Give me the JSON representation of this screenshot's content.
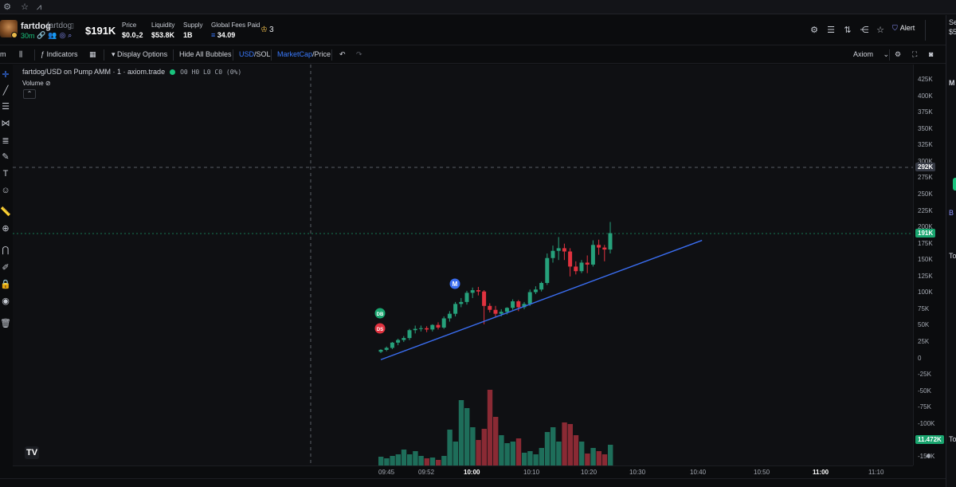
{
  "browser": {
    "icons": [
      "settings-icon",
      "star-icon",
      "chart-icon"
    ]
  },
  "token": {
    "name": "fartdog",
    "ticker": "fartdog",
    "age": "30m",
    "market_cap": "$191K",
    "stats": [
      {
        "label": "Price",
        "value": "$0.0₂2",
        "color": "#ffffff"
      },
      {
        "label": "Liquidity",
        "value": "$53.8K",
        "color": "#ffffff"
      },
      {
        "label": "Supply",
        "value": "1B",
        "color": "#ffffff"
      },
      {
        "label": "Global Fees Paid",
        "value": "34.09",
        "color": "#ffffff"
      }
    ],
    "holders_crown": "3",
    "alert_label": "Alert"
  },
  "toolbar": {
    "timeframe": "m",
    "indicators_label": "Indicators",
    "display_options_label": "Display Options",
    "hide_bubbles_label": "Hide All Bubbles",
    "currency_a": "USD",
    "currency_b": "SOL",
    "mode_a": "MarketCap",
    "mode_b": "Price",
    "source": "Axiom"
  },
  "chart": {
    "legend_title": "fartdog/USD on Pump AMM · 1 · axiom.trade",
    "ohlc": "O0 H0 L0 C0 (0%)",
    "volume_label": "Volume",
    "markers": [
      {
        "label": "M",
        "color": "#3a6df0"
      },
      {
        "label": "DB",
        "color": "#19a56f"
      },
      {
        "label": "DS",
        "color": "#e0323f"
      }
    ],
    "crosshair_price": "292K",
    "last_price": "191K",
    "last_volume": "11.472K",
    "tv_logo": "TV"
  },
  "chart_data": {
    "type": "candlestick",
    "y_ticks": [
      "425K",
      "400K",
      "375K",
      "350K",
      "325K",
      "300K",
      "275K",
      "250K",
      "225K",
      "200K",
      "175K",
      "150K",
      "125K",
      "100K",
      "75K",
      "50K",
      "25K",
      "0",
      "-25K",
      "-50K",
      "-75K",
      "-100K",
      "-125K",
      "-150K"
    ],
    "x_ticks": [
      "09:45",
      "09:52",
      "10:00",
      "10:10",
      "10:20",
      "10:30",
      "10:40",
      "10:50",
      "11:00",
      "11:10"
    ],
    "x_ticks_bold": [
      "10:00",
      "11:00"
    ],
    "up_color": "#26a17b",
    "down_color": "#e0323f",
    "ylim": [
      -150000,
      425000
    ],
    "candles": [
      {
        "o": 10000,
        "h": 14000,
        "c": 13000,
        "l": 8000
      },
      {
        "o": 13000,
        "h": 18000,
        "c": 16000,
        "l": 11000
      },
      {
        "o": 16000,
        "h": 25000,
        "c": 24000,
        "l": 14000
      },
      {
        "o": 24000,
        "h": 30000,
        "c": 28000,
        "l": 20000
      },
      {
        "o": 28000,
        "h": 34000,
        "c": 31000,
        "l": 25000
      },
      {
        "o": 31000,
        "h": 45000,
        "c": 43000,
        "l": 28000
      },
      {
        "o": 43000,
        "h": 50000,
        "c": 45000,
        "l": 38000
      },
      {
        "o": 45000,
        "h": 50000,
        "c": 46000,
        "l": 41000
      },
      {
        "o": 46000,
        "h": 49000,
        "c": 44000,
        "l": 40000
      },
      {
        "o": 44000,
        "h": 52000,
        "c": 51000,
        "l": 41000
      },
      {
        "o": 51000,
        "h": 55000,
        "c": 47000,
        "l": 44000
      },
      {
        "o": 47000,
        "h": 64000,
        "c": 61000,
        "l": 45000
      },
      {
        "o": 61000,
        "h": 72000,
        "c": 68000,
        "l": 56000
      },
      {
        "o": 68000,
        "h": 86000,
        "c": 83000,
        "l": 64000
      },
      {
        "o": 83000,
        "h": 92000,
        "c": 86000,
        "l": 78000
      },
      {
        "o": 86000,
        "h": 103000,
        "c": 100000,
        "l": 82000
      },
      {
        "o": 100000,
        "h": 108000,
        "c": 104000,
        "l": 92000
      },
      {
        "o": 104000,
        "h": 109000,
        "c": 102000,
        "l": 96000
      },
      {
        "o": 102000,
        "h": 104000,
        "c": 80000,
        "l": 52000
      },
      {
        "o": 80000,
        "h": 84000,
        "c": 74000,
        "l": 70000
      },
      {
        "o": 74000,
        "h": 80000,
        "c": 68000,
        "l": 63000
      },
      {
        "o": 68000,
        "h": 75000,
        "c": 71000,
        "l": 64000
      },
      {
        "o": 71000,
        "h": 78000,
        "c": 77000,
        "l": 67000
      },
      {
        "o": 77000,
        "h": 90000,
        "c": 87000,
        "l": 74000
      },
      {
        "o": 87000,
        "h": 89000,
        "c": 78000,
        "l": 72000
      },
      {
        "o": 78000,
        "h": 86000,
        "c": 83000,
        "l": 75000
      },
      {
        "o": 83000,
        "h": 105000,
        "c": 101000,
        "l": 80000
      },
      {
        "o": 101000,
        "h": 110000,
        "c": 105000,
        "l": 98000
      },
      {
        "o": 105000,
        "h": 117000,
        "c": 115000,
        "l": 102000
      },
      {
        "o": 115000,
        "h": 160000,
        "c": 153000,
        "l": 112000
      },
      {
        "o": 153000,
        "h": 172000,
        "c": 164000,
        "l": 146000
      },
      {
        "o": 164000,
        "h": 185000,
        "c": 168000,
        "l": 150000
      },
      {
        "o": 168000,
        "h": 175000,
        "c": 163000,
        "l": 150000
      },
      {
        "o": 163000,
        "h": 168000,
        "c": 140000,
        "l": 125000
      },
      {
        "o": 140000,
        "h": 148000,
        "c": 133000,
        "l": 128000
      },
      {
        "o": 133000,
        "h": 150000,
        "c": 146000,
        "l": 130000
      },
      {
        "o": 146000,
        "h": 157000,
        "c": 143000,
        "l": 130000
      },
      {
        "o": 143000,
        "h": 180000,
        "c": 173000,
        "l": 140000
      },
      {
        "o": 173000,
        "h": 181000,
        "c": 169000,
        "l": 158000
      },
      {
        "o": 169000,
        "h": 173000,
        "c": 166000,
        "l": 148000
      },
      {
        "o": 166000,
        "h": 208000,
        "c": 191000,
        "l": 160000
      }
    ],
    "volumes": [
      11,
      9,
      12,
      14,
      20,
      14,
      18,
      12,
      9,
      10,
      7,
      12,
      45,
      30,
      82,
      72,
      48,
      32,
      46,
      95,
      61,
      38,
      28,
      30,
      34,
      16,
      18,
      14,
      22,
      42,
      48,
      30,
      54,
      52,
      38,
      30,
      15,
      22,
      18,
      14,
      26
    ],
    "trendline": {
      "start": {
        "x_index": 0,
        "y": -2000
      },
      "end": {
        "x_index": 56,
        "y": 180000
      },
      "color": "#3a6df0"
    }
  },
  "timeaxis": {
    "reset_icon": "circle-icon"
  },
  "rightpanel": {
    "texts": [
      "Se",
      "$5",
      "M",
      "B",
      "To",
      "To"
    ]
  }
}
